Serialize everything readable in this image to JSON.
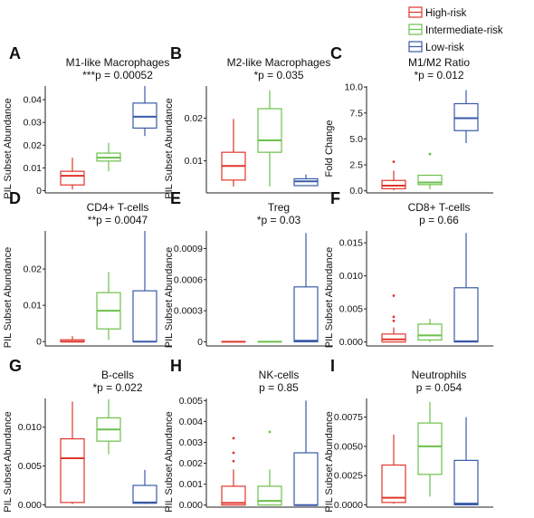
{
  "legend": {
    "entries": [
      {
        "label": "High-risk",
        "color": "#e0362c"
      },
      {
        "label": "Intermediate-risk",
        "color": "#6cc04a"
      },
      {
        "label": "Low-risk",
        "color": "#3a5aa8"
      }
    ]
  },
  "chart_data": [
    {
      "letter": "A",
      "type": "box",
      "title": "M1-like Macrophages",
      "subtitle": "***p = 0.00052",
      "ylabel": "PIL Subset Abundance",
      "ylim": [
        -0.001,
        0.046
      ],
      "yticks": [
        0,
        0.01,
        0.02,
        0.03,
        0.04
      ],
      "ytick_labels": [
        "0",
        "0.01",
        "0.02",
        "0.03",
        "0.04"
      ],
      "series": [
        {
          "name": "High-risk",
          "stats": {
            "min": 0.0005,
            "q1": 0.0025,
            "median": 0.0065,
            "q3": 0.0085,
            "max": 0.0145
          },
          "outliers": []
        },
        {
          "name": "Intermediate-risk",
          "stats": {
            "min": 0.0085,
            "q1": 0.013,
            "median": 0.0145,
            "q3": 0.0165,
            "max": 0.021
          },
          "outliers": []
        },
        {
          "name": "Low-risk",
          "stats": {
            "min": 0.024,
            "q1": 0.0275,
            "median": 0.0325,
            "q3": 0.0385,
            "max": 0.046
          },
          "outliers": []
        }
      ]
    },
    {
      "letter": "B",
      "type": "box",
      "title": "M2-like Macrophages",
      "subtitle": "*p = 0.035",
      "ylabel": "PIL Subset Abundance",
      "ylim": [
        0.0025,
        0.0275
      ],
      "yticks": [
        0.01,
        0.02
      ],
      "ytick_labels": [
        "0.01",
        "0.02"
      ],
      "series": [
        {
          "name": "High-risk",
          "stats": {
            "min": 0.004,
            "q1": 0.0055,
            "median": 0.0088,
            "q3": 0.012,
            "max": 0.0198
          },
          "outliers": []
        },
        {
          "name": "Intermediate-risk",
          "stats": {
            "min": 0.004,
            "q1": 0.012,
            "median": 0.0148,
            "q3": 0.0222,
            "max": 0.0265
          },
          "outliers": []
        },
        {
          "name": "Low-risk",
          "stats": {
            "min": 0.0041,
            "q1": 0.0042,
            "median": 0.0052,
            "q3": 0.0058,
            "max": 0.0068
          },
          "outliers": []
        }
      ]
    },
    {
      "letter": "C",
      "type": "box",
      "title": "M1/M2 Ratio",
      "subtitle": "*p = 0.012",
      "ylabel": "Fold Change",
      "ylim": [
        -0.2,
        10.1
      ],
      "yticks": [
        0,
        2.5,
        5,
        7.5,
        10
      ],
      "ytick_labels": [
        "0.0",
        "2.5",
        "5.0",
        "7.5",
        "10.0"
      ],
      "series": [
        {
          "name": "High-risk",
          "stats": {
            "min": 0.05,
            "q1": 0.2,
            "median": 0.5,
            "q3": 1.0,
            "max": 1.95
          },
          "outliers": [
            2.8
          ]
        },
        {
          "name": "Intermediate-risk",
          "stats": {
            "min": 0.15,
            "q1": 0.6,
            "median": 0.8,
            "q3": 1.5,
            "max": 1.55
          },
          "outliers": [
            3.55
          ]
        },
        {
          "name": "Low-risk",
          "stats": {
            "min": 4.6,
            "q1": 5.8,
            "median": 7.0,
            "q3": 8.4,
            "max": 9.7
          },
          "outliers": []
        }
      ]
    },
    {
      "letter": "D",
      "type": "box",
      "title": "CD4+ T-cells",
      "subtitle": "**p = 0.0047",
      "ylabel": "PIL Subset Abundance",
      "ylim": [
        -0.0012,
        0.0305
      ],
      "yticks": [
        0,
        0.01,
        0.02
      ],
      "ytick_labels": [
        "0",
        "0.01",
        "0.02"
      ],
      "series": [
        {
          "name": "High-risk",
          "stats": {
            "min": 0.0,
            "q1": 0.0,
            "median": 0.0,
            "q3": 0.0005,
            "max": 0.0015
          },
          "outliers": []
        },
        {
          "name": "Intermediate-risk",
          "stats": {
            "min": 0.0005,
            "q1": 0.0035,
            "median": 0.0085,
            "q3": 0.0135,
            "max": 0.0192
          },
          "outliers": []
        },
        {
          "name": "Low-risk",
          "stats": {
            "min": 0.0,
            "q1": 0.0,
            "median": 0.0,
            "q3": 0.014,
            "max": 0.0305
          },
          "outliers": []
        }
      ]
    },
    {
      "letter": "E",
      "type": "box",
      "title": "Treg",
      "subtitle": "*p = 0.03",
      "ylabel": "PIL Subset Abundance",
      "ylim": [
        -4e-05,
        0.00107
      ],
      "yticks": [
        0,
        0.0003,
        0.0006,
        0.0009
      ],
      "ytick_labels": [
        "0",
        "0.0003",
        "0.0006",
        "0.0009"
      ],
      "series": [
        {
          "name": "High-risk",
          "stats": {
            "min": 0.0,
            "q1": 0.0,
            "median": 0.0,
            "q3": 0.0,
            "max": 0.0
          },
          "outliers": []
        },
        {
          "name": "Intermediate-risk",
          "stats": {
            "min": 0.0,
            "q1": 0.0,
            "median": 0.0,
            "q3": 0.0,
            "max": 0.0
          },
          "outliers": []
        },
        {
          "name": "Low-risk",
          "stats": {
            "min": 0.0,
            "q1": 0.0,
            "median": 1e-05,
            "q3": 0.00053,
            "max": 0.00105
          },
          "outliers": []
        }
      ]
    },
    {
      "letter": "F",
      "type": "box",
      "title": "CD8+ T-cells",
      "subtitle": "p = 0.66",
      "ylabel": "PIL Subset Abundance",
      "ylim": [
        -0.0006,
        0.0168
      ],
      "yticks": [
        0,
        0.005,
        0.01,
        0.015
      ],
      "ytick_labels": [
        "0.000",
        "0.005",
        "0.010",
        "0.015"
      ],
      "series": [
        {
          "name": "High-risk",
          "stats": {
            "min": 0.0,
            "q1": 0.0,
            "median": 0.0004,
            "q3": 0.0012,
            "max": 0.0022
          },
          "outliers": [
            0.0032,
            0.0038,
            0.007
          ]
        },
        {
          "name": "Intermediate-risk",
          "stats": {
            "min": 0.0,
            "q1": 0.0003,
            "median": 0.001,
            "q3": 0.0027,
            "max": 0.0035
          },
          "outliers": []
        },
        {
          "name": "Low-risk",
          "stats": {
            "min": 0.0,
            "q1": 0.0,
            "median": 0.0001,
            "q3": 0.0082,
            "max": 0.0165
          },
          "outliers": []
        }
      ]
    },
    {
      "letter": "G",
      "type": "box",
      "title": "B-cells",
      "subtitle": "*p = 0.022",
      "ylabel": "PIL Subset Abundance",
      "ylim": [
        -0.0003,
        0.0137
      ],
      "yticks": [
        0,
        0.005,
        0.01
      ],
      "ytick_labels": [
        "0.000",
        "0.005",
        "0.010"
      ],
      "series": [
        {
          "name": "High-risk",
          "stats": {
            "min": 0.0001,
            "q1": 0.0003,
            "median": 0.006,
            "q3": 0.0085,
            "max": 0.0133
          },
          "outliers": []
        },
        {
          "name": "Intermediate-risk",
          "stats": {
            "min": 0.0065,
            "q1": 0.0082,
            "median": 0.0097,
            "q3": 0.0112,
            "max": 0.0136
          },
          "outliers": []
        },
        {
          "name": "Low-risk",
          "stats": {
            "min": 0.0001,
            "q1": 0.0002,
            "median": 0.0003,
            "q3": 0.0025,
            "max": 0.0045
          },
          "outliers": []
        }
      ]
    },
    {
      "letter": "H",
      "type": "box",
      "title": "NK-cells",
      "subtitle": "p = 0.85",
      "ylabel": "PIL Subset Abundance",
      "ylim": [
        -0.0001,
        0.0051
      ],
      "yticks": [
        0,
        0.001,
        0.002,
        0.003,
        0.004,
        0.005
      ],
      "ytick_labels": [
        "0.000",
        "0.001",
        "0.002",
        "0.003",
        "0.004",
        "0.005"
      ],
      "series": [
        {
          "name": "High-risk",
          "stats": {
            "min": 0.0,
            "q1": 0.0,
            "median": 0.0001,
            "q3": 0.0009,
            "max": 0.0017
          },
          "outliers": [
            0.0021,
            0.0025,
            0.0032
          ]
        },
        {
          "name": "Intermediate-risk",
          "stats": {
            "min": 0.0,
            "q1": 0.0,
            "median": 0.0002,
            "q3": 0.0009,
            "max": 0.0017
          },
          "outliers": [
            0.0035
          ]
        },
        {
          "name": "Low-risk",
          "stats": {
            "min": 0.0,
            "q1": 0.0,
            "median": 0.0,
            "q3": 0.0025,
            "max": 0.005
          },
          "outliers": []
        }
      ]
    },
    {
      "letter": "I",
      "type": "box",
      "title": "Neutrophils",
      "subtitle": "p = 0.054",
      "ylabel": "PIL Subset Abundance",
      "ylim": [
        -0.0002,
        0.0091
      ],
      "yticks": [
        0,
        0.0025,
        0.005,
        0.0075
      ],
      "ytick_labels": [
        "0.0000",
        "0.0025",
        "0.0050",
        "0.0075"
      ],
      "series": [
        {
          "name": "High-risk",
          "stats": {
            "min": 0.0001,
            "q1": 0.0002,
            "median": 0.0006,
            "q3": 0.0034,
            "max": 0.006
          },
          "outliers": []
        },
        {
          "name": "Intermediate-risk",
          "stats": {
            "min": 0.0007,
            "q1": 0.0026,
            "median": 0.005,
            "q3": 0.007,
            "max": 0.0088
          },
          "outliers": []
        },
        {
          "name": "Low-risk",
          "stats": {
            "min": 0.0,
            "q1": 0.0,
            "median": 0.0001,
            "q3": 0.0038,
            "max": 0.0075
          },
          "outliers": []
        }
      ]
    }
  ]
}
